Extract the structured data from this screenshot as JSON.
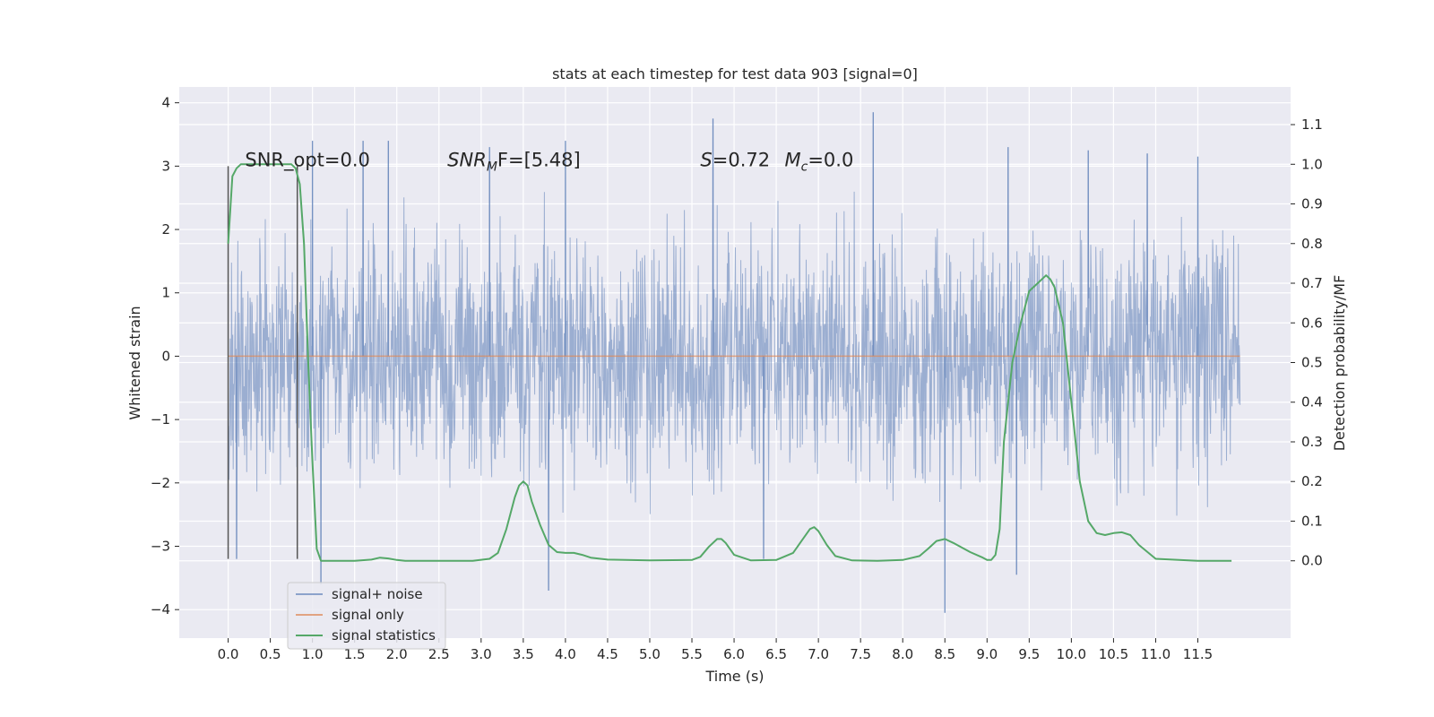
{
  "chart_data": {
    "type": "line",
    "title": "stats at each timestep for test data 903 [signal=0]",
    "xlabel": "Time (s)",
    "ylabel": "Whitened strain",
    "y2label": "Detection probability/MF",
    "xlim": [
      -0.58,
      12.6
    ],
    "ylim": [
      -4.45,
      4.25
    ],
    "y2lim": [
      -0.195,
      1.195
    ],
    "xticks": [
      0.0,
      0.5,
      1.0,
      1.5,
      2.0,
      2.5,
      3.0,
      3.5,
      4.0,
      4.5,
      5.0,
      5.5,
      6.0,
      6.5,
      7.0,
      7.5,
      8.0,
      8.5,
      9.0,
      9.5,
      10.0,
      10.5,
      11.0,
      11.5
    ],
    "xtick_labels": [
      "0.0",
      "0.5",
      "1.0",
      "1.5",
      "2.0",
      "2.5",
      "3.0",
      "3.5",
      "4.0",
      "4.5",
      "5.0",
      "5.5",
      "6.0",
      "6.5",
      "7.0",
      "7.5",
      "8.0",
      "8.5",
      "9.0",
      "9.5",
      "10.0",
      "10.5",
      "11.0",
      "11.5"
    ],
    "yticks": [
      -4,
      -3,
      -2,
      -1,
      0,
      1,
      2,
      3,
      4
    ],
    "ytick_labels": [
      "−4",
      "−3",
      "−2",
      "−1",
      "0",
      "1",
      "2",
      "3",
      "4"
    ],
    "y2ticks": [
      0.0,
      0.1,
      0.2,
      0.3,
      0.4,
      0.5,
      0.6,
      0.7,
      0.8,
      0.9,
      1.0,
      1.1
    ],
    "y2tick_labels": [
      "0.0",
      "0.1",
      "0.2",
      "0.3",
      "0.4",
      "0.5",
      "0.6",
      "0.7",
      "0.8",
      "0.9",
      "1.0",
      "1.1"
    ],
    "grid": true,
    "legend_placement": "lower-left",
    "annotations": [
      {
        "text": "SNR_opt=0.0",
        "x": 0.2,
        "y": 3.0
      },
      {
        "main": "SNR",
        "sub": "M",
        "rest": "F=[5.48]",
        "x": 2.6,
        "y": 3.0
      },
      {
        "main": "S",
        "rest": "=0.72",
        "x": 5.6,
        "y": 3.0
      },
      {
        "main": "M",
        "sub": "c",
        "rest": "=0.0",
        "x": 6.6,
        "y": 3.0
      }
    ],
    "window_lines": [
      {
        "x": 0.0,
        "y_range": [
          -3.2,
          3.0
        ]
      },
      {
        "x": 0.82,
        "y_range": [
          -3.2,
          3.0
        ]
      }
    ],
    "series": [
      {
        "name": "signal+ noise",
        "color": "#4c72b0",
        "axis": "left",
        "t_range": [
          0.0,
          12.0
        ],
        "envelope": {
          "typical_amplitude": 1.8,
          "extremes": [
            {
              "x": 0.1,
              "y": -3.2
            },
            {
              "x": 1.0,
              "y": 3.4
            },
            {
              "x": 1.1,
              "y": -3.6
            },
            {
              "x": 1.6,
              "y": 3.4
            },
            {
              "x": 1.9,
              "y": 3.4
            },
            {
              "x": 3.1,
              "y": 3.3
            },
            {
              "x": 3.8,
              "y": -3.7
            },
            {
              "x": 4.0,
              "y": 3.4
            },
            {
              "x": 5.75,
              "y": 3.75
            },
            {
              "x": 6.35,
              "y": -3.2
            },
            {
              "x": 7.65,
              "y": 3.85
            },
            {
              "x": 8.5,
              "y": -4.05
            },
            {
              "x": 9.25,
              "y": 3.3
            },
            {
              "x": 9.35,
              "y": -3.45
            },
            {
              "x": 10.2,
              "y": 3.25
            },
            {
              "x": 10.9,
              "y": 3.2
            },
            {
              "x": 11.5,
              "y": 3.15
            }
          ]
        }
      },
      {
        "name": "signal only",
        "color": "#dd8452",
        "axis": "left",
        "x": [
          0.0,
          12.0
        ],
        "y": [
          0.0,
          0.0
        ]
      },
      {
        "name": "signal statistics",
        "color": "#55a868",
        "axis": "right",
        "x": [
          0.0,
          0.05,
          0.1,
          0.15,
          0.2,
          0.3,
          0.4,
          0.5,
          0.6,
          0.7,
          0.75,
          0.8,
          0.85,
          0.9,
          0.95,
          1.0,
          1.05,
          1.1,
          1.2,
          1.5,
          1.7,
          1.8,
          1.9,
          2.0,
          2.1,
          2.5,
          2.9,
          3.1,
          3.2,
          3.3,
          3.4,
          3.45,
          3.5,
          3.55,
          3.6,
          3.7,
          3.8,
          3.9,
          4.0,
          4.1,
          4.2,
          4.3,
          4.5,
          5.0,
          5.5,
          5.6,
          5.7,
          5.8,
          5.85,
          5.9,
          6.0,
          6.2,
          6.5,
          6.7,
          6.8,
          6.9,
          6.95,
          7.0,
          7.1,
          7.2,
          7.4,
          7.7,
          8.0,
          8.2,
          8.3,
          8.4,
          8.5,
          8.6,
          8.8,
          8.95,
          9.0,
          9.05,
          9.1,
          9.15,
          9.2,
          9.3,
          9.4,
          9.5,
          9.6,
          9.7,
          9.75,
          9.8,
          9.9,
          10.0,
          10.1,
          10.2,
          10.3,
          10.4,
          10.5,
          10.6,
          10.7,
          10.8,
          11.0,
          11.5,
          11.9
        ],
        "y": [
          0.8,
          0.97,
          0.99,
          1.0,
          1.0,
          1.0,
          1.0,
          1.0,
          1.0,
          1.0,
          1.0,
          0.99,
          0.95,
          0.8,
          0.5,
          0.25,
          0.03,
          0.0,
          0.0,
          0.0,
          0.003,
          0.008,
          0.006,
          0.002,
          0.0,
          0.0,
          0.0,
          0.005,
          0.02,
          0.08,
          0.16,
          0.19,
          0.2,
          0.19,
          0.15,
          0.09,
          0.04,
          0.022,
          0.02,
          0.02,
          0.015,
          0.008,
          0.003,
          0.001,
          0.002,
          0.01,
          0.035,
          0.055,
          0.055,
          0.045,
          0.015,
          0.001,
          0.002,
          0.02,
          0.05,
          0.08,
          0.085,
          0.075,
          0.04,
          0.012,
          0.001,
          0.0,
          0.002,
          0.012,
          0.03,
          0.05,
          0.055,
          0.045,
          0.022,
          0.008,
          0.002,
          0.002,
          0.015,
          0.08,
          0.3,
          0.5,
          0.6,
          0.68,
          0.7,
          0.72,
          0.71,
          0.69,
          0.6,
          0.4,
          0.2,
          0.1,
          0.07,
          0.065,
          0.07,
          0.072,
          0.065,
          0.04,
          0.005,
          0.0,
          0.0
        ]
      }
    ]
  }
}
